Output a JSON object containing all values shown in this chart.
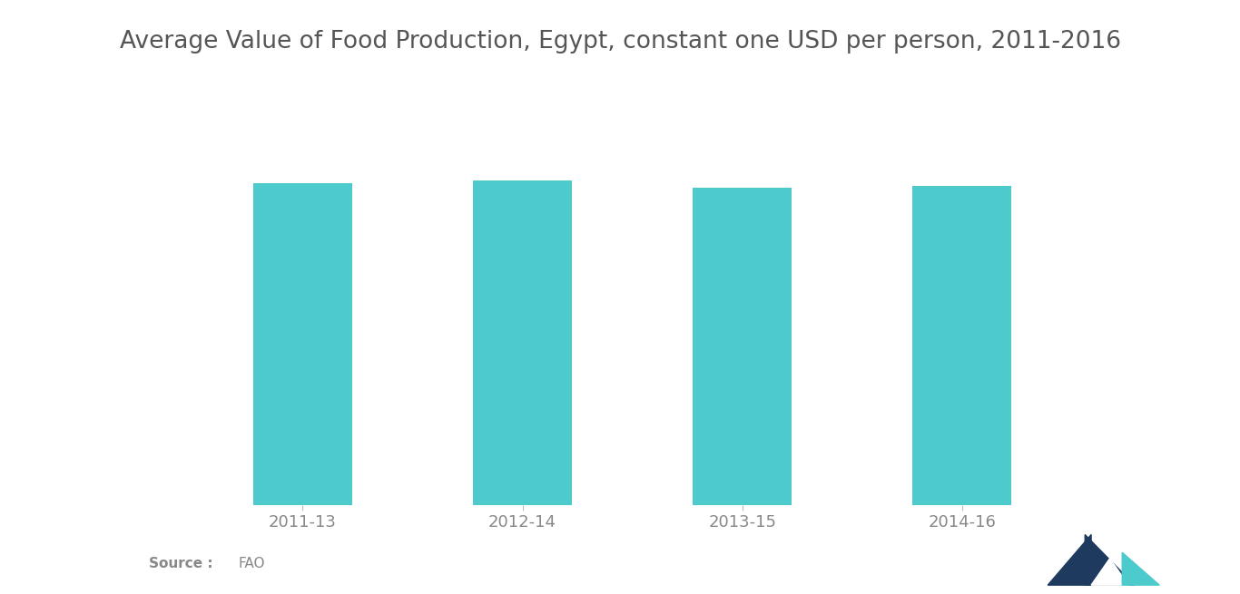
{
  "title": "Average Value of Food Production, Egypt, constant one USD per person, 2011-2016",
  "categories": [
    "2011-13",
    "2012-14",
    "2013-15",
    "2014-16"
  ],
  "values": [
    100,
    100.8,
    98.5,
    99.2
  ],
  "bar_color": "#4DCACC",
  "background_color": "#ffffff",
  "title_fontsize": 19,
  "tick_fontsize": 13,
  "source_bold": "Source :",
  "source_normal": "FAO",
  "text_color": "#888888",
  "ylim": [
    0,
    120
  ],
  "bar_width": 0.45
}
